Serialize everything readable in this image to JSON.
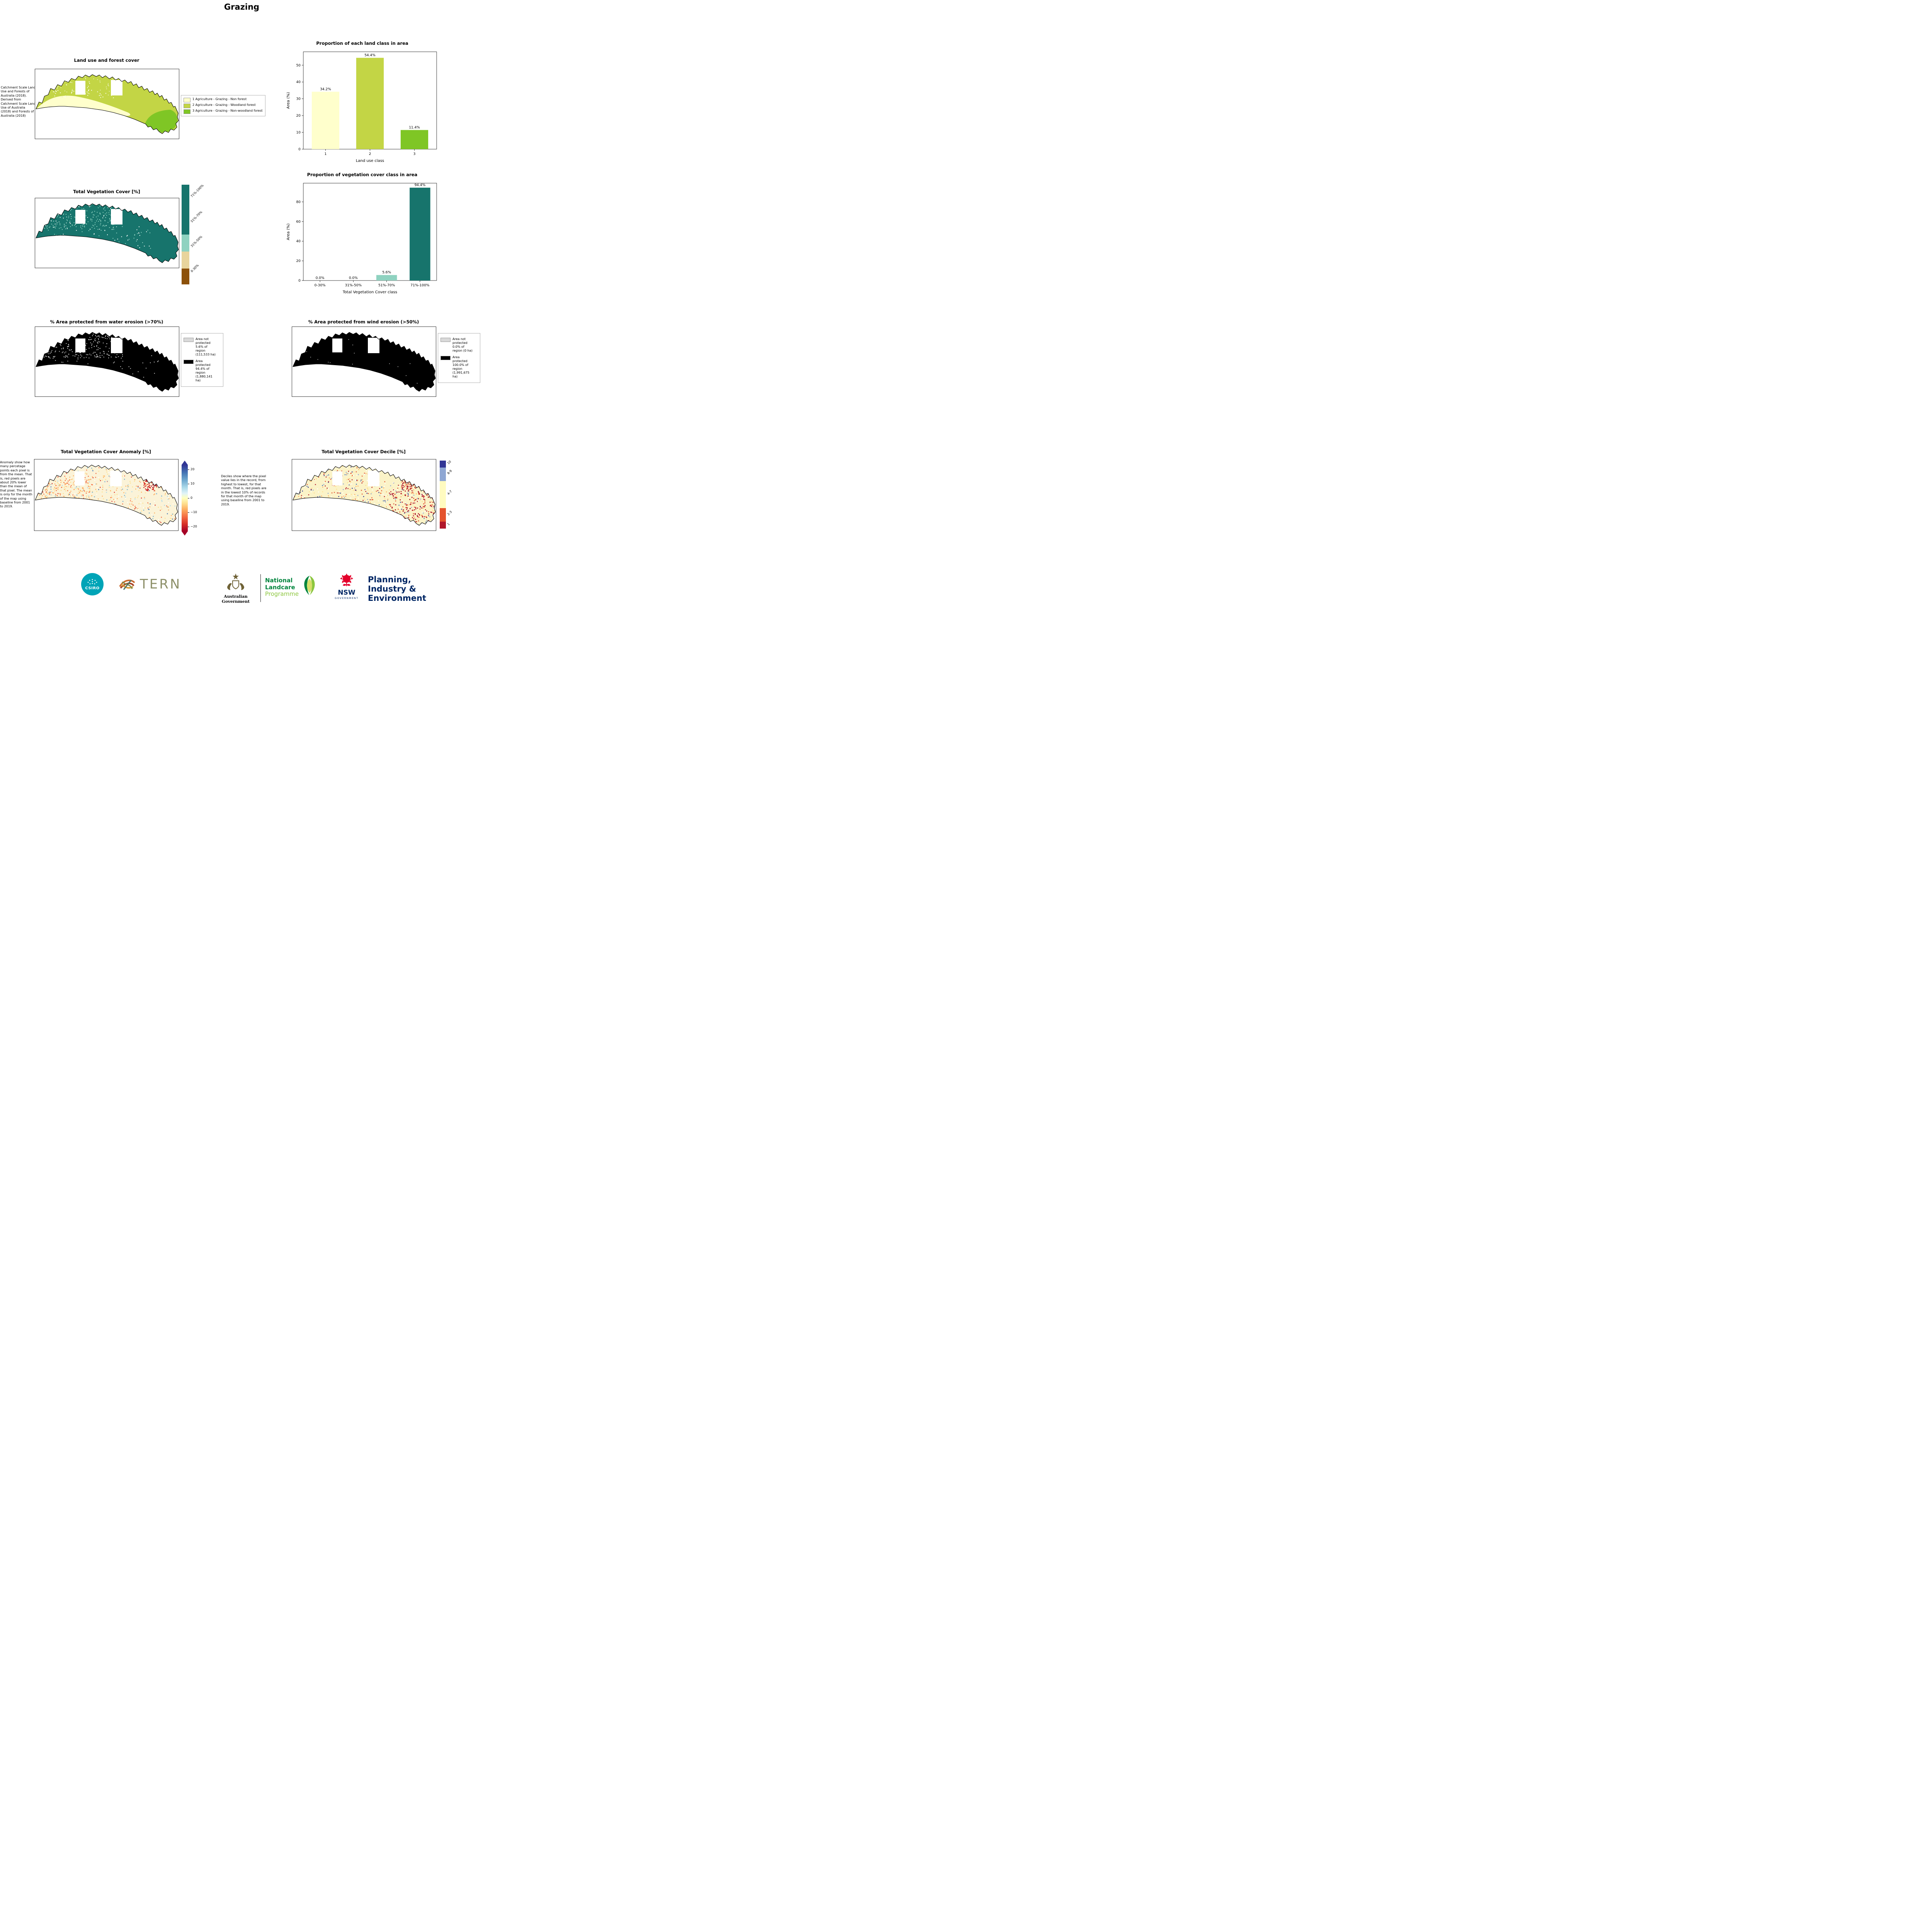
{
  "page": {
    "title": "Grazing"
  },
  "panels": {
    "land_use": {
      "title": "Land use and forest cover",
      "note": "Catchment Scale Land Use and Forests of Australia (2018). Derived from Catchment Scale Land Use of Australia (2018) and Forests of Australia (2018)",
      "legend": [
        {
          "label": "1 Agriculture - Grazing - Non forest",
          "color": "#ffffcc"
        },
        {
          "label": "2 Agriculture - Grazing - Woodland forest",
          "color": "#c3d545"
        },
        {
          "label": "3 Agriculture - Grazing - Non-woodland forest",
          "color": "#7fc625"
        }
      ]
    },
    "veg_cover": {
      "title": "Total Vegetation Cover [%]",
      "colorbar": [
        {
          "label": "71%-100%",
          "color": "#17746c",
          "frac": 0.5
        },
        {
          "label": "51%-70%",
          "color": "#8fd2c0",
          "frac": 0.17
        },
        {
          "label": "31%-50%",
          "color": "#e8d49c",
          "frac": 0.17
        },
        {
          "label": "0-30%",
          "color": "#8c510a",
          "frac": 0.16
        }
      ]
    },
    "water_erosion": {
      "title": "% Area protected from water erosion (>70%)",
      "legend": [
        {
          "label": "Area not protected 5.6% of region (111,533 ha)",
          "color": "#d9d9d9"
        },
        {
          "label": "Area protected 94.4% of region (1,880,141 ha)",
          "color": "#000000"
        }
      ]
    },
    "wind_erosion": {
      "title": "% Area protected from wind erosion (>50%)",
      "legend": [
        {
          "label": "Area not protected 0.0% of region (0 ha)",
          "color": "#d9d9d9"
        },
        {
          "label": "Area protected 100.0% of region (1,991,675 ha)",
          "color": "#000000"
        }
      ]
    },
    "anomaly": {
      "title": "Total Vegetation Cover Anomaly [%]",
      "note": "Anomaly show how many percetage points each pixel is from the mean. That is, red pixels are about 20% lower than the mean of that pixel. The mean is only for the month of the map using baseline from 2001 to 2019.",
      "colorbar_ticks": [
        "20",
        "10",
        "0",
        "−10",
        "−20"
      ]
    },
    "decile": {
      "title": "Total Vegetation Cover Decile [%]",
      "note": "Deciles show where the pixel value lies in the record, from highest to lowest, for that month. That is, red pixels are in the lowest 10% of records for that month of the map using baseline from 2001 to 2019.",
      "colorbar": [
        {
          "label": "10",
          "color": "#313695",
          "frac": 0.1
        },
        {
          "label": "8-9",
          "color": "#8fa7d3",
          "frac": 0.2
        },
        {
          "label": "4-7",
          "color": "#fffbc0",
          "frac": 0.4
        },
        {
          "label": "2-3",
          "color": "#e4532e",
          "frac": 0.2
        },
        {
          "label": "1",
          "color": "#b0172b",
          "frac": 0.1
        }
      ]
    }
  },
  "chart_data": [
    {
      "type": "bar",
      "title": "Proportion of each land class in area",
      "categories": [
        "1",
        "2",
        "3"
      ],
      "values": [
        34.2,
        54.4,
        11.4
      ],
      "bar_labels": [
        "34.2%",
        "54.4%",
        "11.4%"
      ],
      "colors": [
        "#ffffcc",
        "#c3d545",
        "#7fc625"
      ],
      "xlabel": "Land use class",
      "ylabel": "Area (%)",
      "ylim": [
        0,
        58
      ],
      "yticks": [
        0,
        10,
        20,
        30,
        40,
        50
      ],
      "legend_position": "none",
      "grid": false
    },
    {
      "type": "bar",
      "title": "Proportion of vegetation cover class in area",
      "categories": [
        "0-30%",
        "31%-50%",
        "51%-70%",
        "71%-100%"
      ],
      "values": [
        0.0,
        0.0,
        5.6,
        94.4
      ],
      "bar_labels": [
        "0.0%",
        "0.0%",
        "5.6%",
        "94.4%"
      ],
      "colors": [
        "#8c510a",
        "#e8d49c",
        "#8fd2c0",
        "#17746c"
      ],
      "xlabel": "Total Vegetation Cover class",
      "ylabel": "Area (%)",
      "ylim": [
        0,
        99
      ],
      "yticks": [
        0,
        20,
        40,
        60,
        80
      ],
      "legend_position": "none",
      "grid": false
    }
  ],
  "footer": {
    "csiro_label": "CSIRO",
    "tern_label": "TERN",
    "aus_gov_label": "Australian Government",
    "landcare_line1": "National",
    "landcare_line2": "Landcare",
    "landcare_line3": "Programme",
    "nsw_label": "NSW",
    "nsw_sub_label": "GOVERNMENT",
    "planning_line1": "Planning,",
    "planning_line2": "Industry &",
    "planning_line3": "Environment"
  }
}
